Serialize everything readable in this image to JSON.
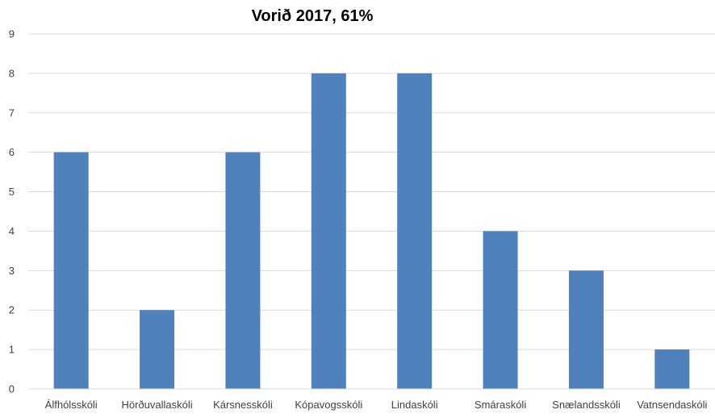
{
  "chart_data": {
    "type": "bar",
    "title": "Vorið 2017, 61%",
    "categories": [
      "Álfhólsskóli",
      "Hörðuvallaskóli",
      "Kársnesskóli",
      "Kópavogsskóli",
      "Lindaskóli",
      "Smáraskóli",
      "Snælandsskóli",
      "Vatnsendaskóli"
    ],
    "series": [
      {
        "values": [
          6,
          2,
          6,
          8,
          8,
          4,
          3,
          1
        ]
      }
    ],
    "ylim": [
      0,
      9
    ],
    "yticks": [
      0,
      1,
      2,
      3,
      4,
      5,
      6,
      7,
      8,
      9
    ],
    "grid": true,
    "legend": "none",
    "colors": {
      "bar": "#4f81bd"
    }
  }
}
